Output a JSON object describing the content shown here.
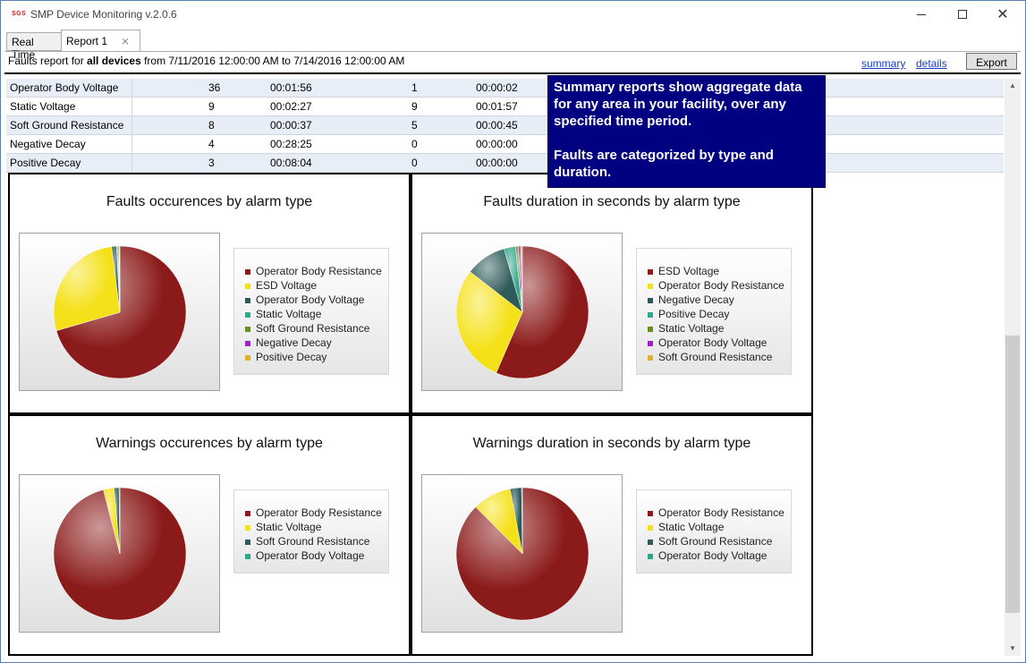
{
  "window": {
    "logo_text": "SGS",
    "title": "SMP Device Monitoring v.2.0.6"
  },
  "tabs": [
    {
      "label": "Real Time"
    },
    {
      "label": "Report 1"
    }
  ],
  "report_bar": {
    "prefix": "Faults report for ",
    "scope": "all devices",
    "suffix": " from 7/11/2016 12:00:00 AM to 7/14/2016 12:00:00 AM",
    "summary_link": "summary",
    "details_link": "details",
    "export_label": "Export"
  },
  "table": {
    "rows": [
      {
        "name": "Operator Body Voltage",
        "fault_count": "36",
        "fault_duration": "00:01:56",
        "warning_count": "1",
        "warning_duration": "00:00:02"
      },
      {
        "name": "Static Voltage",
        "fault_count": "9",
        "fault_duration": "00:02:27",
        "warning_count": "9",
        "warning_duration": "00:01:57"
      },
      {
        "name": "Soft Ground Resistance",
        "fault_count": "8",
        "fault_duration": "00:00:37",
        "warning_count": "5",
        "warning_duration": "00:00:45"
      },
      {
        "name": "Negative Decay",
        "fault_count": "4",
        "fault_duration": "00:28:25",
        "warning_count": "0",
        "warning_duration": "00:00:00"
      },
      {
        "name": "Positive Decay",
        "fault_count": "3",
        "fault_duration": "00:08:04",
        "warning_count": "0",
        "warning_duration": "00:00:00"
      }
    ]
  },
  "tooltip": {
    "para1": "Summary reports show aggregate data for any area in your facility, over any specified time period.",
    "para2": "Faults are categorized by type and duration."
  },
  "colors": {
    "Operator Body Resistance": "#8b1a1a",
    "ESD Voltage": "#f5e11a",
    "Operator Body Voltage": "#2e5a5a",
    "Static Voltage": "#2fa88a",
    "Soft Ground Resistance": "#6b8e23",
    "Negative Decay": "#a020c0",
    "Positive Decay": "#e0b030"
  },
  "chart_data": [
    {
      "type": "pie",
      "title": "Faults occurences by alarm type",
      "legend": [
        "Operator Body Resistance",
        "ESD Voltage",
        "Operator Body Voltage",
        "Static Voltage",
        "Soft Ground Resistance",
        "Negative Decay",
        "Positive Decay"
      ],
      "legend_colors": [
        "#8b1a1a",
        "#f5e11a",
        "#2e5a5a",
        "#2fa88a",
        "#6b8e23",
        "#a020c0",
        "#e0b030"
      ],
      "slices": [
        {
          "label": "Operator Body Resistance",
          "value": 70.5,
          "color": "#8b1a1a"
        },
        {
          "label": "ESD Voltage",
          "value": 27.5,
          "color": "#f5e11a"
        },
        {
          "label": "Operator Body Voltage",
          "value": 1.2,
          "color": "#2e5a5a"
        },
        {
          "label": "Static Voltage",
          "value": 0.3,
          "color": "#2fa88a"
        },
        {
          "label": "Soft Ground Resistance",
          "value": 0.3,
          "color": "#6b8e23"
        },
        {
          "label": "Negative Decay",
          "value": 0.1,
          "color": "#a020c0"
        },
        {
          "label": "Positive Decay",
          "value": 0.1,
          "color": "#e0b030"
        }
      ]
    },
    {
      "type": "pie",
      "title": "Faults duration in seconds by alarm type",
      "legend": [
        "ESD Voltage",
        "Operator Body Resistance",
        "Negative Decay",
        "Positive Decay",
        "Static Voltage",
        "Operator Body Voltage",
        "Soft Ground Resistance"
      ],
      "legend_colors": [
        "#8b1a1a",
        "#f5e11a",
        "#2e5a5a",
        "#2fa88a",
        "#6b8e23",
        "#a020c0",
        "#e0b030"
      ],
      "slices": [
        {
          "label": "ESD Voltage",
          "value": 56.5,
          "color": "#8b1a1a"
        },
        {
          "label": "Operator Body Resistance",
          "value": 29,
          "color": "#f5e11a"
        },
        {
          "label": "Negative Decay",
          "value": 10,
          "color": "#2e5a5a"
        },
        {
          "label": "Positive Decay",
          "value": 2.8,
          "color": "#2fa88a"
        },
        {
          "label": "Static Voltage",
          "value": 0.7,
          "color": "#6b8e23"
        },
        {
          "label": "Operator Body Voltage",
          "value": 0.6,
          "color": "#a020c0"
        },
        {
          "label": "Soft Ground Resistance",
          "value": 0.4,
          "color": "#e0b030"
        }
      ]
    },
    {
      "type": "pie",
      "title": "Warnings occurences by alarm type",
      "legend": [
        "Operator Body Resistance",
        "Static Voltage",
        "Soft Ground Resistance",
        "Operator Body Voltage"
      ],
      "legend_colors": [
        "#8b1a1a",
        "#f5e11a",
        "#2e5a5a",
        "#2fa88a"
      ],
      "slices": [
        {
          "label": "Operator Body Resistance",
          "value": 96,
          "color": "#8b1a1a"
        },
        {
          "label": "Static Voltage",
          "value": 2.6,
          "color": "#f5e11a"
        },
        {
          "label": "Soft Ground Resistance",
          "value": 1.2,
          "color": "#2e5a5a"
        },
        {
          "label": "Operator Body Voltage",
          "value": 0.2,
          "color": "#2fa88a"
        }
      ]
    },
    {
      "type": "pie",
      "title": "Warnings duration in seconds by alarm type",
      "legend": [
        "Operator Body Resistance",
        "Static Voltage",
        "Soft Ground Resistance",
        "Operator Body Voltage"
      ],
      "legend_colors": [
        "#8b1a1a",
        "#f5e11a",
        "#2e5a5a",
        "#2fa88a"
      ],
      "slices": [
        {
          "label": "Operator Body Resistance",
          "value": 87.5,
          "color": "#8b1a1a"
        },
        {
          "label": "Static Voltage",
          "value": 9.5,
          "color": "#f5e11a"
        },
        {
          "label": "Soft Ground Resistance",
          "value": 2.8,
          "color": "#2e5a5a"
        },
        {
          "label": "Operator Body Voltage",
          "value": 0.2,
          "color": "#2fa88a"
        }
      ]
    }
  ]
}
